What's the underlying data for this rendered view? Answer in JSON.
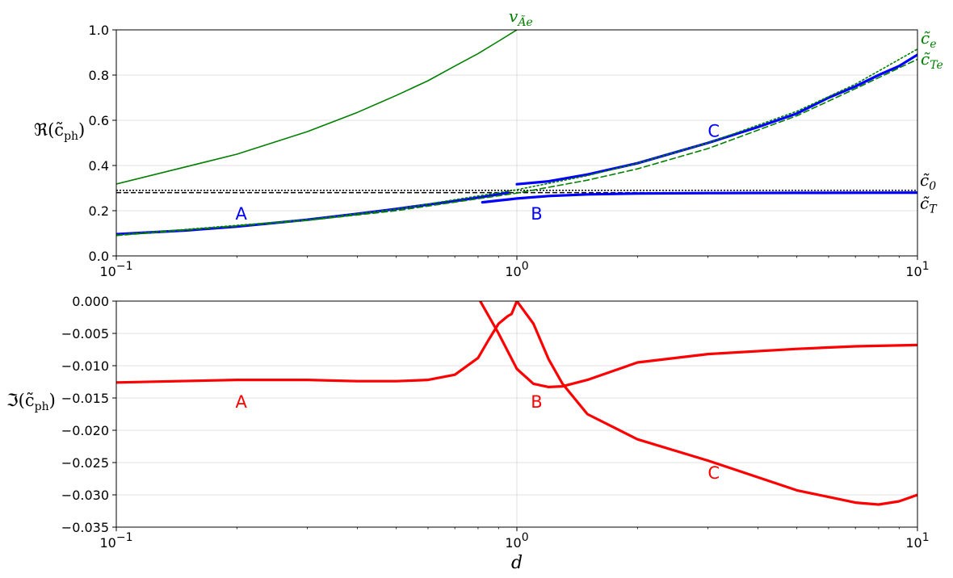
{
  "chart_data": [
    {
      "type": "line",
      "ylabel": "ℜ(c̃ph)",
      "ylabel_main": "ℜ(c̃",
      "ylabel_sub": "ph",
      "ylabel_close": ")",
      "xscale": "log",
      "xlim": [
        0.1,
        10
      ],
      "ylim": [
        0.0,
        1.0
      ],
      "grid": true,
      "x_ticks": [
        "10",
        "10",
        "10"
      ],
      "x_tick_exps": [
        "−1",
        "0",
        "1"
      ],
      "x_tick_values": [
        0.1,
        1,
        10
      ],
      "y_ticks": [
        "0.0",
        "0.2",
        "0.4",
        "0.6",
        "0.8",
        "1.0"
      ],
      "y_tick_values": [
        0.0,
        0.2,
        0.4,
        0.6,
        0.8,
        1.0
      ],
      "colors": {
        "branch": "#0000ff",
        "alfven": "#008000",
        "reference": "#000000"
      },
      "reference_lines": {
        "c0": {
          "y": 0.29,
          "style": "dotted",
          "label": "c̃0",
          "label_main": "c̃",
          "label_sub": "0"
        },
        "cT": {
          "y": 0.28,
          "style": "dashed",
          "label": "c̃T",
          "label_main": "c̃",
          "label_sub": "T"
        }
      },
      "green_labels": {
        "vAe": {
          "label": "vÃe",
          "label_main": "v",
          "label_sub": "Ãe"
        },
        "ce": {
          "label": "c̃e",
          "label_main": "c̃",
          "label_sub": "e"
        },
        "cTe": {
          "label": "c̃Te",
          "label_main": "c̃",
          "label_sub": "Te"
        }
      },
      "series": [
        {
          "name": "A",
          "color": "#0000ff",
          "x": [
            0.1,
            0.15,
            0.2,
            0.3,
            0.4,
            0.5,
            0.6,
            0.7,
            0.8,
            0.9,
            0.95
          ],
          "y": [
            0.096,
            0.113,
            0.13,
            0.16,
            0.186,
            0.208,
            0.227,
            0.243,
            0.258,
            0.272,
            0.28
          ]
        },
        {
          "name": "B",
          "color": "#0000ff",
          "x": [
            0.82,
            0.9,
            1.0,
            1.2,
            1.5,
            2,
            3,
            5,
            10
          ],
          "y": [
            0.237,
            0.245,
            0.254,
            0.265,
            0.272,
            0.276,
            0.278,
            0.279,
            0.28
          ]
        },
        {
          "name": "C",
          "color": "#0000ff",
          "x": [
            1.0,
            1.2,
            1.5,
            2,
            3,
            4,
            5,
            6,
            7,
            8,
            9,
            10
          ],
          "y": [
            0.317,
            0.33,
            0.36,
            0.41,
            0.5,
            0.57,
            0.63,
            0.7,
            0.75,
            0.8,
            0.84,
            0.89
          ]
        },
        {
          "name": "vÃe",
          "color": "#008000",
          "style": "solid",
          "x": [
            0.1,
            0.2,
            0.3,
            0.4,
            0.5,
            0.6,
            0.7,
            0.8,
            0.9,
            1.0
          ],
          "y": [
            0.318,
            0.45,
            0.55,
            0.635,
            0.71,
            0.775,
            0.84,
            0.895,
            0.95,
            1.0
          ]
        },
        {
          "name": "c̃e",
          "color": "#008000",
          "style": "dotted",
          "x": [
            0.1,
            0.3,
            0.5,
            1.0,
            1.5,
            2,
            3,
            5,
            7,
            10
          ],
          "y": [
            0.093,
            0.16,
            0.207,
            0.293,
            0.355,
            0.41,
            0.5,
            0.64,
            0.76,
            0.915
          ]
        },
        {
          "name": "c̃Te",
          "color": "#008000",
          "style": "dashed",
          "x": [
            0.1,
            0.3,
            0.5,
            1.0,
            1.5,
            2,
            3,
            5,
            7,
            10
          ],
          "y": [
            0.09,
            0.157,
            0.2,
            0.278,
            0.335,
            0.385,
            0.475,
            0.62,
            0.74,
            0.87
          ]
        }
      ],
      "annotations": [
        {
          "text": "A",
          "x": 0.205,
          "y": 0.19
        },
        {
          "text": "B",
          "x": 1.12,
          "y": 0.19
        },
        {
          "text": "C",
          "x": 3.1,
          "y": 0.555
        }
      ]
    },
    {
      "type": "line",
      "ylabel": "ℑ(c̃ph)",
      "ylabel_main": "ℑ(c̃",
      "ylabel_sub": "ph",
      "ylabel_close": ")",
      "xlabel": "d",
      "xscale": "log",
      "xlim": [
        0.1,
        10
      ],
      "ylim": [
        -0.035,
        0.0
      ],
      "grid": true,
      "x_ticks": [
        "10",
        "10",
        "10"
      ],
      "x_tick_exps": [
        "−1",
        "0",
        "1"
      ],
      "x_tick_values": [
        0.1,
        1,
        10
      ],
      "y_ticks": [
        "0.000",
        "−0.005",
        "−0.010",
        "−0.015",
        "−0.020",
        "−0.025",
        "−0.030",
        "−0.035"
      ],
      "y_tick_values": [
        0.0,
        -0.005,
        -0.01,
        -0.015,
        -0.02,
        -0.025,
        -0.03,
        -0.035
      ],
      "colors": {
        "branch": "#ff0000"
      },
      "series": [
        {
          "name": "A",
          "color": "#ff0000",
          "x": [
            0.1,
            0.2,
            0.3,
            0.4,
            0.5,
            0.6,
            0.7,
            0.8,
            0.85,
            0.9,
            0.95,
            0.97,
            1.0
          ],
          "y": [
            -0.0126,
            -0.0122,
            -0.0122,
            -0.0124,
            -0.0124,
            -0.0122,
            -0.0114,
            -0.0088,
            -0.006,
            -0.0035,
            -0.0023,
            -0.002,
            0.0
          ]
        },
        {
          "name": "B",
          "color": "#ff0000",
          "x": [
            0.81,
            0.9,
            1.0,
            1.1,
            1.2,
            1.3,
            1.5,
            2,
            3,
            5,
            7,
            10
          ],
          "y": [
            0.0,
            -0.005,
            -0.0105,
            -0.0128,
            -0.0133,
            -0.0132,
            -0.0122,
            -0.0095,
            -0.0082,
            -0.0074,
            -0.007,
            -0.0068
          ]
        },
        {
          "name": "C",
          "color": "#ff0000",
          "x": [
            1.0,
            1.1,
            1.2,
            1.3,
            1.5,
            2,
            3,
            5,
            7,
            8,
            9,
            10
          ],
          "y": [
            0.0,
            -0.0035,
            -0.009,
            -0.0128,
            -0.0175,
            -0.0214,
            -0.0247,
            -0.0293,
            -0.0312,
            -0.0315,
            -0.031,
            -0.03
          ]
        }
      ],
      "annotations": [
        {
          "text": "A",
          "x": 0.205,
          "y": -0.0155
        },
        {
          "text": "B",
          "x": 1.12,
          "y": -0.0155
        },
        {
          "text": "C",
          "x": 3.1,
          "y": -0.0265
        }
      ]
    }
  ]
}
